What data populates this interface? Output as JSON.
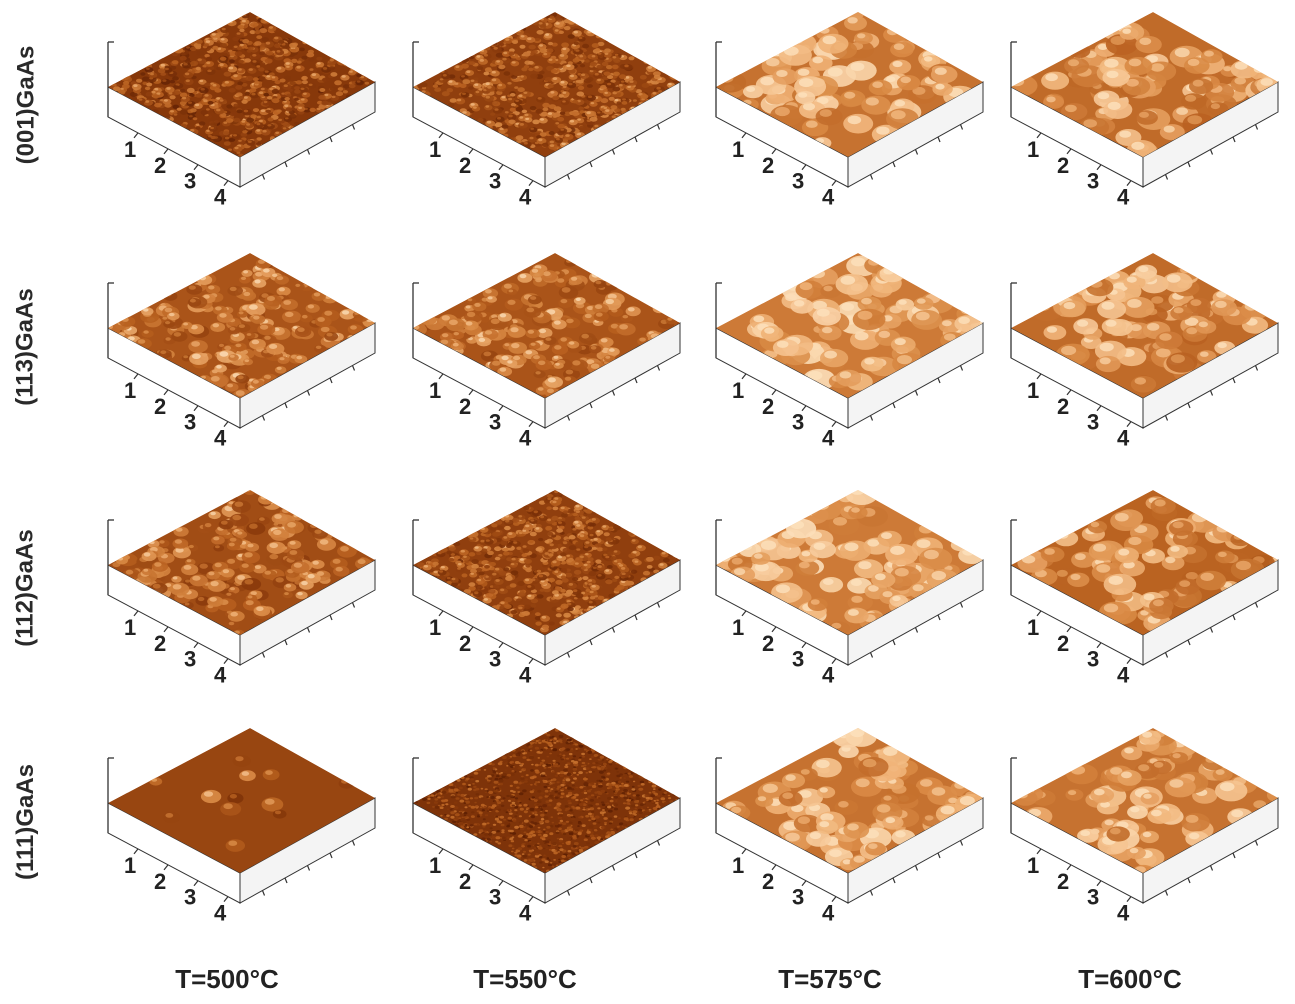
{
  "figure": {
    "row_labels": [
      "(001)GaAs",
      "(113)GaAs",
      "(112)GaAs",
      "(111)GaAs"
    ],
    "column_labels": [
      "T=500°C",
      "T=550°C",
      "T=575°C",
      "T=600°C"
    ],
    "axis_tick_labels": [
      "1",
      "2",
      "3",
      "4"
    ],
    "colormap": [
      "#5a1d02",
      "#8a3a0b",
      "#b8601f",
      "#d98a45",
      "#f1b57a",
      "#fde3c0"
    ],
    "panels": [
      {
        "row": 0,
        "col": 0,
        "grain": "fine",
        "brightness": 0.25
      },
      {
        "row": 0,
        "col": 1,
        "grain": "fine",
        "brightness": 0.3
      },
      {
        "row": 0,
        "col": 2,
        "grain": "coarse",
        "brightness": 0.65
      },
      {
        "row": 0,
        "col": 3,
        "grain": "coarse",
        "brightness": 0.6
      },
      {
        "row": 1,
        "col": 0,
        "grain": "medium",
        "brightness": 0.45
      },
      {
        "row": 1,
        "col": 1,
        "grain": "medium",
        "brightness": 0.45
      },
      {
        "row": 1,
        "col": 2,
        "grain": "coarse",
        "brightness": 0.7
      },
      {
        "row": 1,
        "col": 3,
        "grain": "coarse",
        "brightness": 0.6
      },
      {
        "row": 2,
        "col": 0,
        "grain": "medium",
        "brightness": 0.4
      },
      {
        "row": 2,
        "col": 1,
        "grain": "fine",
        "brightness": 0.3
      },
      {
        "row": 2,
        "col": 2,
        "grain": "coarse",
        "brightness": 0.7
      },
      {
        "row": 2,
        "col": 3,
        "grain": "coarse",
        "brightness": 0.55
      },
      {
        "row": 3,
        "col": 0,
        "grain": "smooth",
        "brightness": 0.35
      },
      {
        "row": 3,
        "col": 1,
        "grain": "very-fine",
        "brightness": 0.2
      },
      {
        "row": 3,
        "col": 2,
        "grain": "coarse",
        "brightness": 0.65
      },
      {
        "row": 3,
        "col": 3,
        "grain": "coarse",
        "brightness": 0.65
      }
    ]
  }
}
